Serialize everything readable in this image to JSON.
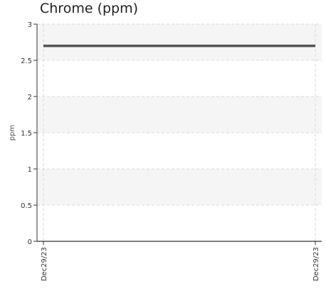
{
  "chart_data": {
    "type": "line",
    "title": "Chrome (ppm)",
    "xlabel": "",
    "ylabel": "ppm",
    "x": [
      "Dec29/23",
      "Dec29/23"
    ],
    "series": [
      {
        "values": [
          2.7,
          2.7
        ]
      }
    ],
    "yticks": [
      0,
      0.5,
      1,
      1.5,
      2,
      2.5,
      3
    ],
    "ytick_labels": [
      "0",
      "0.5",
      "1",
      "1.5",
      "2",
      "2.5",
      "3"
    ],
    "ylim": [
      0,
      3
    ],
    "grid": true,
    "colors": {
      "line": "#555555",
      "band": "#f5f5f5",
      "grid": "#d9d9d9",
      "axis": "#333333"
    }
  }
}
